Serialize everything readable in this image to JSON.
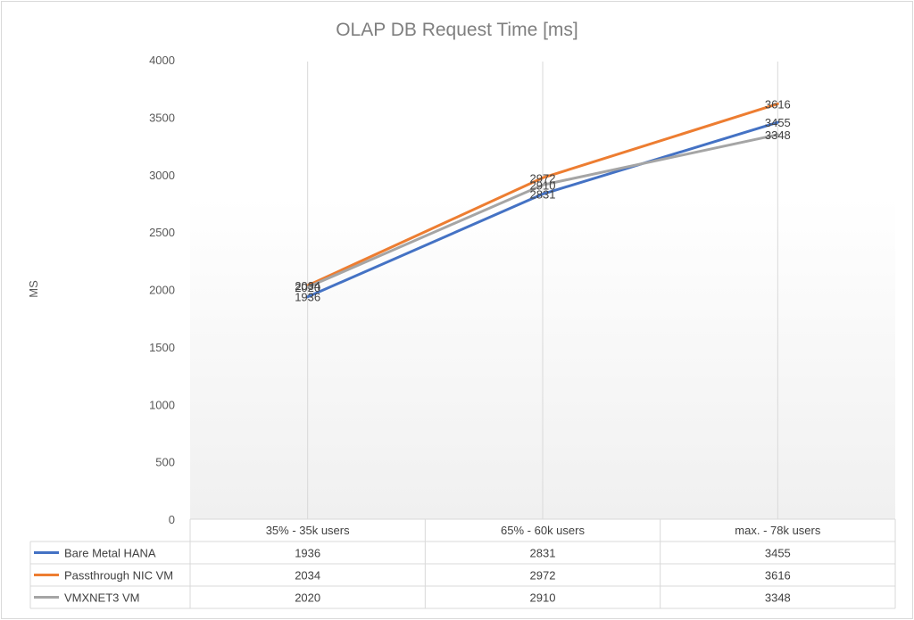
{
  "chart_data": {
    "type": "line",
    "title": "OLAP DB Request Time [ms]",
    "ylabel": "MS",
    "xlabel": "",
    "ylim": [
      0,
      4000
    ],
    "yticks": [
      0,
      500,
      1000,
      1500,
      2000,
      2500,
      3000,
      3500,
      4000
    ],
    "categories": [
      "35% - 35k users",
      "65% - 60k users",
      "max. - 78k users"
    ],
    "series": [
      {
        "name": "Bare Metal HANA",
        "color": "#4472c4",
        "values": [
          1936,
          2831,
          3455
        ]
      },
      {
        "name": "Passthrough NIC VM",
        "color": "#ed7d31",
        "values": [
          2034,
          2972,
          3616
        ]
      },
      {
        "name": "VMXNET3 VM",
        "color": "#a5a5a5",
        "values": [
          2020,
          2910,
          3348
        ]
      }
    ],
    "grid": "vertical-category-lines",
    "legend": "data-table-below"
  }
}
